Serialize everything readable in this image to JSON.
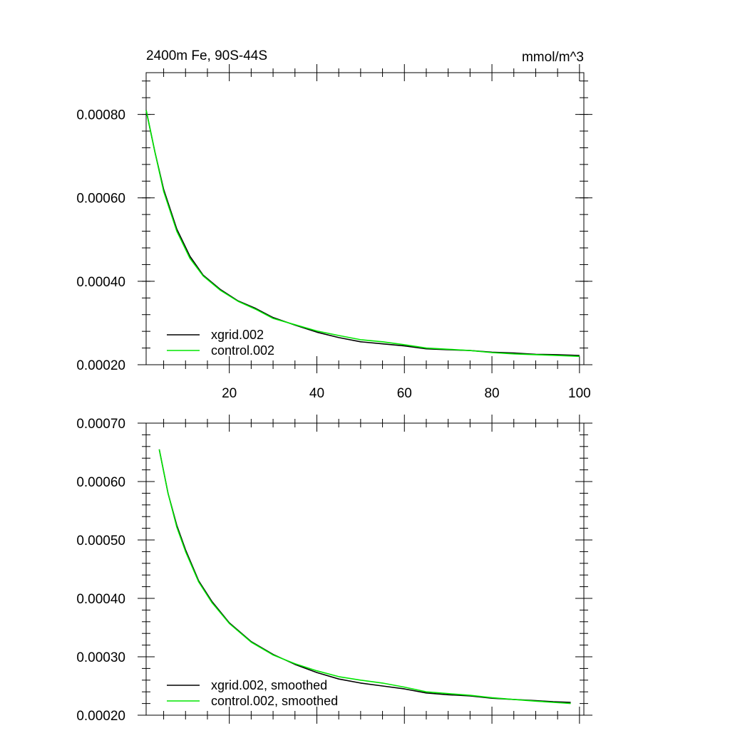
{
  "chart_data": [
    {
      "type": "line",
      "title": "2400m Fe, 90S-44S",
      "units": "mmol/m^3",
      "xlim": [
        1,
        101
      ],
      "ylim": [
        0.0002,
        0.0009
      ],
      "xticks": [
        20,
        40,
        60,
        80,
        100
      ],
      "xtick_labels": [
        "20",
        "40",
        "60",
        "80",
        "100"
      ],
      "yticks": [
        0.0002,
        0.0004,
        0.0006,
        0.0008
      ],
      "ytick_labels": [
        "0.00020",
        "0.00040",
        "0.00060",
        "0.00080"
      ],
      "legend_position": "bottom-left",
      "x": [
        1,
        3,
        5,
        8,
        11,
        14,
        18,
        22,
        26,
        30,
        35,
        40,
        45,
        50,
        55,
        60,
        65,
        70,
        75,
        80,
        85,
        90,
        95,
        100
      ],
      "series": [
        {
          "name": "xgrid.002",
          "color": "#000000",
          "values": [
            0.00081,
            0.00071,
            0.00062,
            0.000525,
            0.00046,
            0.000415,
            0.00038,
            0.000353,
            0.000335,
            0.000313,
            0.000295,
            0.000278,
            0.000265,
            0.000255,
            0.00025,
            0.000245,
            0.000238,
            0.000236,
            0.000234,
            0.00023,
            0.000228,
            0.000225,
            0.000224,
            0.000222
          ]
        },
        {
          "name": "control.002",
          "color": "#00e600",
          "values": [
            0.00081,
            0.00071,
            0.000615,
            0.00052,
            0.000455,
            0.000413,
            0.000378,
            0.000352,
            0.000333,
            0.000311,
            0.000296,
            0.000281,
            0.00027,
            0.00026,
            0.000255,
            0.000248,
            0.00024,
            0.000237,
            0.000234,
            0.000229,
            0.000226,
            0.000224,
            0.000222,
            0.00022
          ]
        }
      ]
    },
    {
      "type": "line",
      "xlim": [
        1,
        101
      ],
      "ylim": [
        0.0002,
        0.0007
      ],
      "xticks": [
        20,
        40,
        60,
        80,
        100
      ],
      "yticks": [
        0.0002,
        0.0003,
        0.0004,
        0.0005,
        0.0006,
        0.0007
      ],
      "ytick_labels": [
        "0.00020",
        "0.00030",
        "0.00040",
        "0.00050",
        "0.00060",
        "0.00070"
      ],
      "legend_position": "bottom-left",
      "x": [
        4,
        6,
        8,
        10,
        13,
        16,
        20,
        25,
        30,
        35,
        40,
        45,
        50,
        55,
        60,
        65,
        70,
        75,
        80,
        85,
        90,
        94,
        98
      ],
      "series": [
        {
          "name": "xgrid.002, smoothed",
          "color": "#000000",
          "values": [
            0.000655,
            0.00058,
            0.000525,
            0.000483,
            0.00043,
            0.000395,
            0.000358,
            0.000326,
            0.000304,
            0.000287,
            0.000273,
            0.000262,
            0.000255,
            0.00025,
            0.000245,
            0.000238,
            0.000235,
            0.000233,
            0.000229,
            0.000227,
            0.000225,
            0.000223,
            0.000222
          ]
        },
        {
          "name": "control.002, smoothed",
          "color": "#00e600",
          "values": [
            0.000655,
            0.00058,
            0.000522,
            0.00048,
            0.000428,
            0.000393,
            0.000357,
            0.000325,
            0.000303,
            0.000288,
            0.000276,
            0.000266,
            0.00026,
            0.000255,
            0.000248,
            0.00024,
            0.000237,
            0.000234,
            0.00023,
            0.000227,
            0.000224,
            0.000222,
            0.00022
          ]
        }
      ]
    }
  ]
}
